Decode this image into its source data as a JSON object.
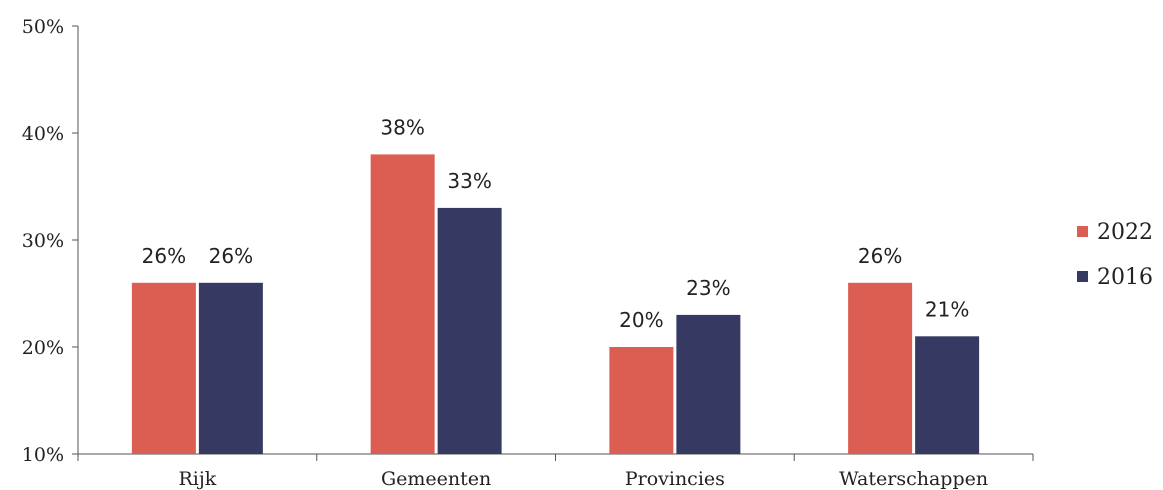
{
  "chart_data": {
    "type": "bar",
    "categories": [
      "Rijk",
      "Gemeenten",
      "Provincies",
      "Waterschappen"
    ],
    "series": [
      {
        "name": "2022",
        "values": [
          26,
          38,
          20,
          26
        ],
        "labels": [
          "26%",
          "38%",
          "20%",
          "26%"
        ],
        "color": "#dc5d51"
      },
      {
        "name": "2016",
        "values": [
          26,
          33,
          23,
          21
        ],
        "labels": [
          "26%",
          "33%",
          "23%",
          "21%"
        ],
        "color": "#363a63"
      }
    ],
    "ylim": [
      10,
      50
    ],
    "yticks": [
      10,
      20,
      30,
      40,
      50
    ],
    "ytick_labels": [
      "10%",
      "20%",
      "30%",
      "40%",
      "50%"
    ],
    "legend": "right",
    "grid": false
  }
}
